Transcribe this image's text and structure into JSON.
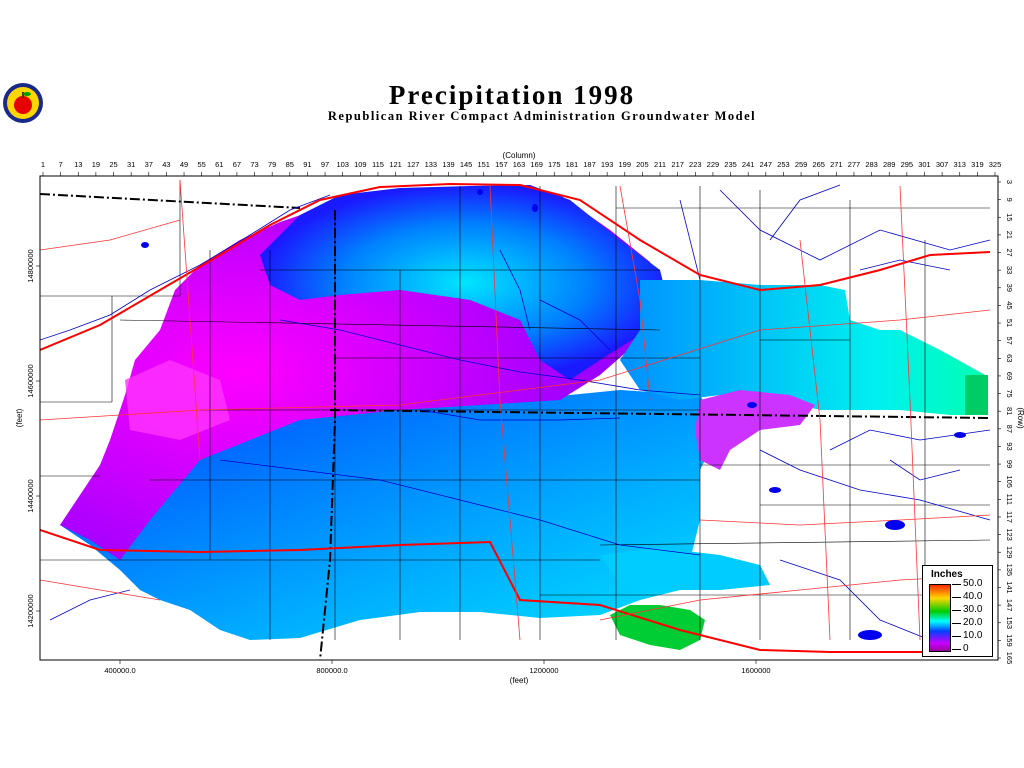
{
  "header": {
    "title": "Precipitation  1998",
    "subtitle": "Republican River Compact Administration Groundwater Model"
  },
  "logo": {
    "icon": "apple-seal-icon"
  },
  "axes": {
    "top_title": "(Column)",
    "bottom_title": "(feet)",
    "left_title": "(feet)",
    "right_title": "(Row)",
    "column_ticks": [
      "1",
      "7",
      "13",
      "19",
      "25",
      "31",
      "37",
      "43",
      "49",
      "55",
      "61",
      "67",
      "73",
      "79",
      "85",
      "91",
      "97",
      "103",
      "109",
      "115",
      "121",
      "127",
      "133",
      "139",
      "145",
      "151",
      "157",
      "163",
      "169",
      "175",
      "181",
      "187",
      "193",
      "199",
      "205",
      "211",
      "217",
      "223",
      "229",
      "235",
      "241",
      "247",
      "253",
      "259",
      "265",
      "271",
      "277",
      "283",
      "289",
      "295",
      "301",
      "307",
      "313",
      "319",
      "325"
    ],
    "row_ticks": [
      "3",
      "9",
      "15",
      "21",
      "27",
      "33",
      "39",
      "45",
      "51",
      "57",
      "63",
      "69",
      "75",
      "81",
      "87",
      "93",
      "99",
      "105",
      "111",
      "117",
      "123",
      "129",
      "135",
      "141",
      "147",
      "153",
      "159",
      "165"
    ],
    "x_ticks": [
      "400000.0",
      "800000.0",
      "1200000",
      "1600000"
    ],
    "y_ticks": [
      "14800000",
      "14600000",
      "14400000",
      "14200000"
    ]
  },
  "legend": {
    "title": "Inches",
    "labels": [
      "50.0",
      "40.0",
      "30.0",
      "20.0",
      "10.0",
      "0"
    ]
  },
  "colors": {
    "high": "#ff2a00",
    "mid_high": "#ffd700",
    "mid": "#00cc00",
    "mid_low": "#00ffff",
    "low": "#0040ff",
    "lowest": "#c800ff",
    "river": "#0000cc",
    "highway": "#ff0000"
  }
}
